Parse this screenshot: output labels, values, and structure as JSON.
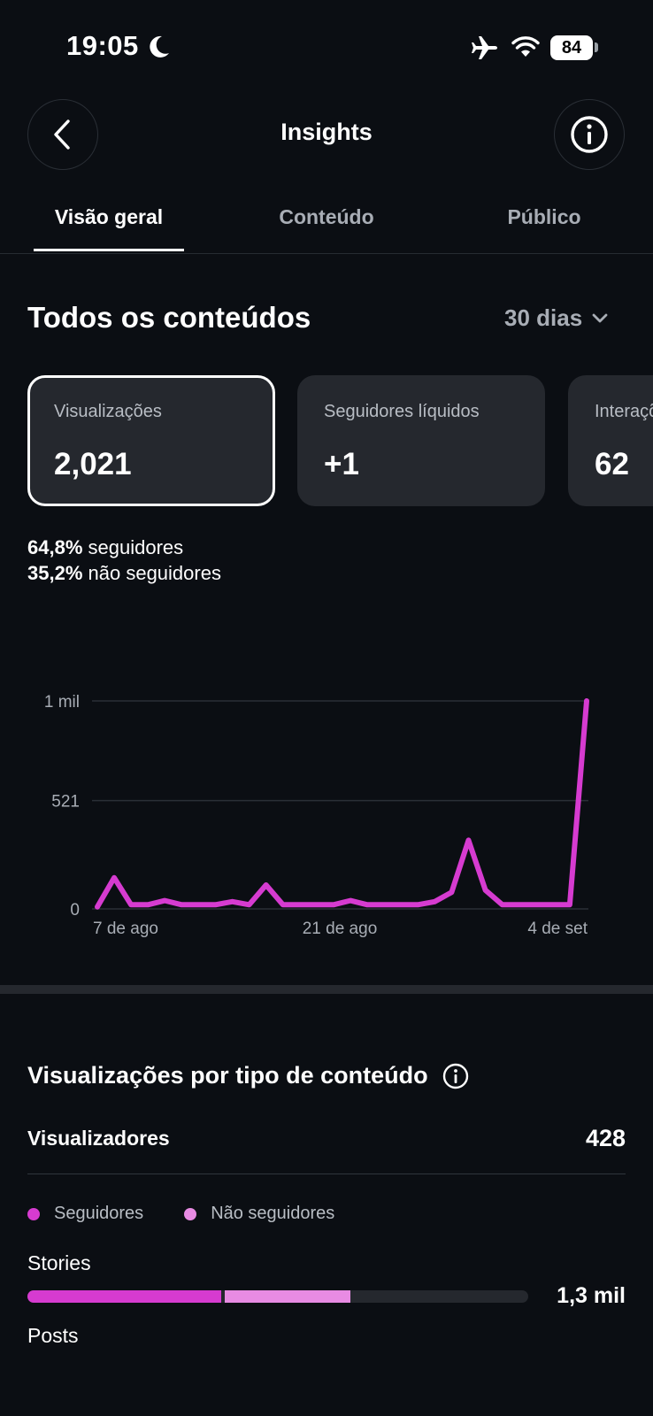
{
  "status_bar": {
    "time": "19:05",
    "battery": "84",
    "icons": [
      "moon-icon",
      "airplane-icon",
      "wifi-icon",
      "battery-icon"
    ]
  },
  "header": {
    "title": "Insights",
    "back_icon": "chevron-left-icon",
    "info_icon": "info-icon"
  },
  "tabs": [
    {
      "label": "Visão geral",
      "active": true
    },
    {
      "label": "Conteúdo",
      "active": false
    },
    {
      "label": "Público",
      "active": false
    }
  ],
  "overview": {
    "title": "Todos os conteúdos",
    "period": "30 dias",
    "cards": [
      {
        "label": "Visualizações",
        "value": "2,021",
        "selected": true
      },
      {
        "label": "Seguidores líquidos",
        "value": "+1",
        "selected": false
      },
      {
        "label": "Interações",
        "value": "62",
        "selected": false
      }
    ],
    "split": {
      "followers_pct": "64,8%",
      "followers_label": "seguidores",
      "non_followers_pct": "35,2%",
      "non_followers_label": "não seguidores"
    }
  },
  "chart_data": {
    "type": "line",
    "title": "",
    "xlabel": "",
    "ylabel": "",
    "y_ticks": [
      "1 mil",
      "521",
      "0"
    ],
    "y_tick_values": [
      1000,
      521,
      0
    ],
    "x_ticks": [
      "7 de ago",
      "21 de ago",
      "4 de set"
    ],
    "x_tick_index": [
      0,
      11,
      28
    ],
    "ylim": [
      0,
      1000
    ],
    "grid": true,
    "color": "#d63bd0",
    "series": [
      {
        "values": [
          10,
          150,
          20,
          20,
          40,
          20,
          20,
          20,
          35,
          20,
          115,
          20,
          20,
          20,
          20,
          40,
          20,
          20,
          20,
          20,
          35,
          80,
          330,
          90,
          20,
          20,
          20,
          20,
          20,
          1000
        ]
      }
    ]
  },
  "views_by_type": {
    "title": "Visualizações por tipo de conteúdo",
    "viewers_label": "Visualizadores",
    "viewers_value": "428",
    "legend": [
      {
        "label": "Seguidores",
        "color": "#d63bd0"
      },
      {
        "label": "Não seguidores",
        "color": "#e88be3"
      }
    ],
    "rows": [
      {
        "label": "Stories",
        "value": "1,3 mil",
        "followers_fraction": 0.39,
        "non_followers_fraction": 0.255
      },
      {
        "label": "Posts"
      }
    ]
  }
}
